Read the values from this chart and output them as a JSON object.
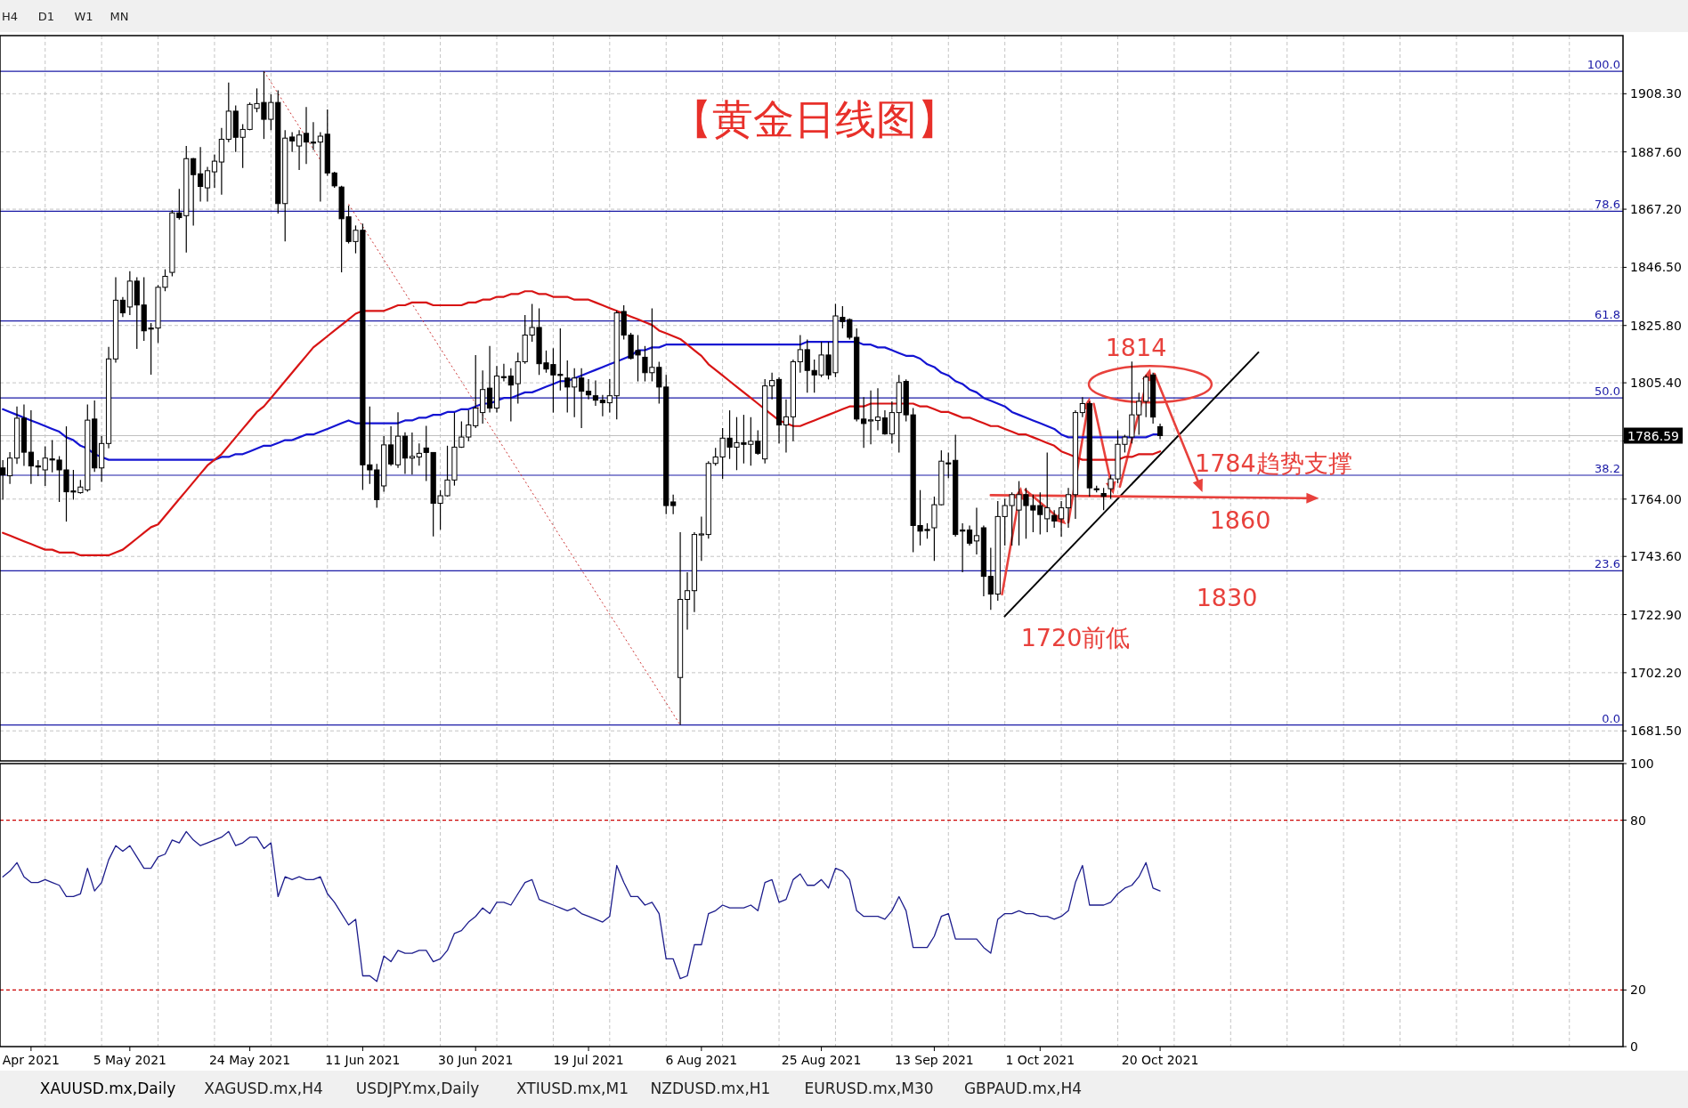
{
  "chart_data": [
    {
      "type": "candlestick",
      "title": "【黄金日线图】",
      "categories": [
        null,
        null,
        null,
        null,
        null,
        null,
        null,
        null,
        null,
        null,
        null,
        null,
        null,
        null,
        null,
        null,
        null,
        null,
        null,
        null,
        null,
        null,
        null,
        null,
        null,
        null,
        null,
        null,
        null,
        null,
        null,
        null,
        null,
        null,
        null,
        null,
        null,
        null,
        null,
        null,
        null,
        null,
        null,
        null,
        null,
        null,
        null,
        null,
        null,
        null,
        null,
        null,
        null,
        null,
        null,
        null,
        null,
        null,
        null,
        null,
        null,
        null,
        null,
        null,
        null,
        null,
        null,
        null,
        null,
        null,
        null,
        null,
        null,
        null,
        null,
        null,
        null,
        null,
        null,
        null,
        null,
        null,
        null,
        null,
        null,
        null,
        null,
        null,
        null,
        null,
        null,
        null,
        null,
        null,
        null,
        null,
        null,
        null,
        null,
        null,
        null,
        null,
        null,
        null,
        null,
        null,
        null,
        null,
        null,
        null,
        null,
        null,
        null,
        null,
        null,
        null,
        null,
        null,
        null,
        null,
        null,
        null,
        null,
        null,
        null,
        null,
        null,
        null,
        null,
        null,
        null,
        null,
        null,
        null,
        null,
        null,
        null,
        null,
        null,
        null,
        null,
        null,
        null,
        null,
        null,
        null,
        null,
        null,
        null,
        null,
        null,
        null,
        null,
        null,
        null,
        null,
        null,
        null,
        null,
        null,
        null,
        null,
        null,
        null,
        null
      ],
      "ohlc": [
        [
          1775.1,
          1777.9,
          1763.8,
          1772.6
        ],
        [
          1772.3,
          1780.7,
          1769.4,
          1778.6
        ],
        [
          1778.6,
          1797.0,
          1776.5,
          1792.8
        ],
        [
          1792.8,
          1797.7,
          1775.8,
          1780.7
        ],
        [
          1780.7,
          1795.6,
          1769.4,
          1775.8
        ],
        [
          1775.8,
          1777.9,
          1772.2,
          1775.6
        ],
        [
          1774.4,
          1782.8,
          1768.7,
          1778.6
        ],
        [
          1778.3,
          1785.0,
          1773.5,
          1778.1
        ],
        [
          1777.9,
          1779.3,
          1763.0,
          1774.4
        ],
        [
          1774.4,
          1789.9,
          1756.0,
          1766.6
        ],
        [
          1766.9,
          1774.4,
          1763.8,
          1766.7
        ],
        [
          1766.3,
          1770.8,
          1765.9,
          1768.3
        ],
        [
          1767.3,
          1797.7,
          1766.6,
          1792.1
        ],
        [
          1792.5,
          1799.1,
          1773.7,
          1775.1
        ],
        [
          1775.1,
          1786.4,
          1770.1,
          1783.8
        ],
        [
          1783.8,
          1818.2,
          1782.1,
          1813.9
        ],
        [
          1813.9,
          1843.0,
          1812.6,
          1834.8
        ],
        [
          1834.8,
          1835.9,
          1828.8,
          1830.3
        ],
        [
          1832.4,
          1845.1,
          1829.5,
          1841.6
        ],
        [
          1841.6,
          1843.0,
          1817.5,
          1833.1
        ],
        [
          1833.1,
          1843.0,
          1820.3,
          1823.9
        ],
        [
          1824.9,
          1826.7,
          1808.3,
          1824.7
        ],
        [
          1824.9,
          1840.2,
          1819.6,
          1839.4
        ],
        [
          1839.4,
          1845.8,
          1838.0,
          1843.3
        ],
        [
          1844.7,
          1866.8,
          1843.3,
          1865.9
        ],
        [
          1865.9,
          1874.4,
          1863.5,
          1864.2
        ],
        [
          1864.9,
          1889.7,
          1851.8,
          1885.2
        ],
        [
          1885.2,
          1885.4,
          1861.4,
          1879.5
        ],
        [
          1879.8,
          1889.3,
          1869.9,
          1875.3
        ],
        [
          1874.8,
          1882.3,
          1869.9,
          1880.9
        ],
        [
          1880.5,
          1886.6,
          1874.8,
          1884.3
        ],
        [
          1884.0,
          1896.1,
          1872.4,
          1892.1
        ],
        [
          1892.1,
          1912.3,
          1891.1,
          1902.1
        ],
        [
          1902.1,
          1904.1,
          1887.6,
          1892.8
        ],
        [
          1892.8,
          1897.5,
          1881.9,
          1895.6
        ],
        [
          1895.6,
          1905.2,
          1895.3,
          1904.5
        ],
        [
          1903.1,
          1910.2,
          1901.7,
          1904.8
        ],
        [
          1905.2,
          1916.3,
          1892.2,
          1899.2
        ],
        [
          1899.2,
          1908.1,
          1895.3,
          1905.2
        ],
        [
          1905.2,
          1909.5,
          1865.6,
          1869.2
        ],
        [
          1869.2,
          1895.3,
          1855.7,
          1892.5
        ],
        [
          1892.9,
          1894.6,
          1887.6,
          1891.5
        ],
        [
          1889.7,
          1895.3,
          1881.2,
          1893.6
        ],
        [
          1894.2,
          1903.6,
          1883.3,
          1891.1
        ],
        [
          1891.1,
          1898.2,
          1888.3,
          1891.0
        ],
        [
          1891.1,
          1894.6,
          1869.9,
          1893.2
        ],
        [
          1893.9,
          1902.7,
          1879.1,
          1880.1
        ],
        [
          1880.1,
          1880.5,
          1874.8,
          1875.5
        ],
        [
          1875.1,
          1875.5,
          1844.7,
          1863.8
        ],
        [
          1864.5,
          1868.5,
          1855.0,
          1855.7
        ],
        [
          1855.7,
          1861.4,
          1851.5,
          1859.7
        ],
        [
          1859.7,
          1862.1,
          1767.3,
          1776.2
        ],
        [
          1776.2,
          1797.0,
          1769.4,
          1774.4
        ],
        [
          1774.4,
          1776.5,
          1760.9,
          1763.8
        ],
        [
          1768.7,
          1786.4,
          1766.6,
          1783.3
        ],
        [
          1783.3,
          1789.9,
          1775.8,
          1776.5
        ],
        [
          1776.2,
          1794.9,
          1775.1,
          1786.4
        ],
        [
          1786.4,
          1787.8,
          1773.0,
          1778.6
        ],
        [
          1778.6,
          1787.7,
          1772.7,
          1779.2
        ],
        [
          1779.0,
          1783.8,
          1775.9,
          1780.3
        ],
        [
          1782.2,
          1790.1,
          1770.4,
          1780.6
        ],
        [
          1780.6,
          1780.6,
          1750.7,
          1762.5
        ],
        [
          1762.5,
          1767.2,
          1753.1,
          1765.2
        ],
        [
          1765.2,
          1783.0,
          1764.9,
          1770.8
        ],
        [
          1770.8,
          1794.8,
          1768.8,
          1782.5
        ],
        [
          1782.5,
          1791.7,
          1782.2,
          1786.1
        ],
        [
          1786.1,
          1795.6,
          1784.6,
          1790.4
        ],
        [
          1790.1,
          1815.3,
          1789.3,
          1796.4
        ],
        [
          1794.8,
          1809.8,
          1790.9,
          1803.0
        ],
        [
          1803.5,
          1818.5,
          1794.8,
          1796.4
        ],
        [
          1796.4,
          1811.4,
          1794.8,
          1807.8
        ],
        [
          1807.6,
          1812.2,
          1805.9,
          1807.4
        ],
        [
          1807.8,
          1810.6,
          1791.7,
          1804.6
        ],
        [
          1805.1,
          1816.1,
          1798.0,
          1812.9
        ],
        [
          1812.9,
          1829.5,
          1812.2,
          1822.4
        ],
        [
          1822.4,
          1833.5,
          1820.0,
          1825.1
        ],
        [
          1825.1,
          1831.9,
          1808.2,
          1812.2
        ],
        [
          1812.5,
          1816.9,
          1809.0,
          1810.3
        ],
        [
          1811.9,
          1817.7,
          1794.8,
          1808.2
        ],
        [
          1808.4,
          1824.8,
          1802.7,
          1808.2
        ],
        [
          1807.1,
          1813.4,
          1794.8,
          1803.9
        ],
        [
          1803.9,
          1810.6,
          1793.2,
          1807.1
        ],
        [
          1807.1,
          1810.6,
          1789.3,
          1802.4
        ],
        [
          1802.4,
          1806.7,
          1799.5,
          1801.1
        ],
        [
          1800.8,
          1806.2,
          1797.2,
          1799.2
        ],
        [
          1799.2,
          1801.1,
          1793.5,
          1798.3
        ],
        [
          1798.3,
          1806.7,
          1794.8,
          1800.8
        ],
        [
          1800.8,
          1831.1,
          1792.4,
          1830.3
        ],
        [
          1830.8,
          1833.0,
          1820.8,
          1822.4
        ],
        [
          1822.4,
          1823.2,
          1813.7,
          1814.1
        ],
        [
          1816.9,
          1822.4,
          1805.9,
          1815.3
        ],
        [
          1814.5,
          1818.5,
          1805.9,
          1809.0
        ],
        [
          1809.0,
          1831.9,
          1805.9,
          1810.9
        ],
        [
          1810.9,
          1812.9,
          1798.0,
          1803.9
        ],
        [
          1803.9,
          1808.2,
          1758.6,
          1761.7
        ],
        [
          1763.0,
          1765.6,
          1758.6,
          1761.7
        ],
        [
          1700.5,
          1752.2,
          1683.6,
          1728.3
        ],
        [
          1728.3,
          1738.0,
          1717.5,
          1731.4
        ],
        [
          1731.4,
          1752.2,
          1723.8,
          1751.4
        ],
        [
          1751.4,
          1757.8,
          1742.0,
          1751.6
        ],
        [
          1751.4,
          1777.5,
          1749.9,
          1776.7
        ],
        [
          1776.7,
          1782.2,
          1775.9,
          1779.0
        ],
        [
          1779.0,
          1789.3,
          1771.2,
          1785.7
        ],
        [
          1785.7,
          1795.6,
          1778.3,
          1782.5
        ],
        [
          1782.5,
          1793.2,
          1774.3,
          1784.1
        ],
        [
          1784.1,
          1794.0,
          1776.7,
          1783.5
        ],
        [
          1783.5,
          1793.2,
          1775.9,
          1784.6
        ],
        [
          1784.6,
          1788.5,
          1779.8,
          1780.3
        ],
        [
          1778.3,
          1806.7,
          1776.7,
          1804.3
        ],
        [
          1804.3,
          1809.0,
          1799.5,
          1806.2
        ],
        [
          1806.6,
          1807.4,
          1783.8,
          1790.4
        ],
        [
          1790.4,
          1799.5,
          1780.6,
          1793.3
        ],
        [
          1793.3,
          1813.7,
          1784.6,
          1812.9
        ],
        [
          1812.9,
          1822.4,
          1809.0,
          1817.2
        ],
        [
          1817.2,
          1820.8,
          1801.9,
          1809.8
        ],
        [
          1809.8,
          1813.7,
          1801.9,
          1808.2
        ],
        [
          1808.2,
          1820.0,
          1807.4,
          1815.3
        ],
        [
          1815.3,
          1820.0,
          1806.6,
          1808.2
        ],
        [
          1809.0,
          1833.5,
          1807.4,
          1829.2
        ],
        [
          1828.7,
          1832.7,
          1824.8,
          1827.2
        ],
        [
          1827.9,
          1828.3,
          1820.8,
          1821.6
        ],
        [
          1821.6,
          1824.8,
          1791.7,
          1792.5
        ],
        [
          1792.5,
          1800.3,
          1782.2,
          1790.9
        ],
        [
          1792.0,
          1802.7,
          1783.5,
          1792.2
        ],
        [
          1792.0,
          1803.5,
          1788.5,
          1793.2
        ],
        [
          1792.9,
          1795.6,
          1786.9,
          1787.2
        ],
        [
          1787.2,
          1798.8,
          1783.8,
          1794.8
        ],
        [
          1794.8,
          1808.2,
          1780.6,
          1805.5
        ],
        [
          1805.9,
          1806.6,
          1791.7,
          1794.0
        ],
        [
          1794.0,
          1796.4,
          1745.1,
          1754.6
        ],
        [
          1754.6,
          1767.2,
          1747.5,
          1752.6
        ],
        [
          1753.2,
          1755.4,
          1749.9,
          1753.0
        ],
        [
          1753.8,
          1764.9,
          1742.0,
          1762.0
        ],
        [
          1762.0,
          1781.4,
          1761.7,
          1777.5
        ],
        [
          1776.9,
          1780.6,
          1771.5,
          1776.7
        ],
        [
          1777.8,
          1786.9,
          1750.6,
          1751.4
        ],
        [
          1753.0,
          1755.4,
          1738.0,
          1752.6
        ],
        [
          1753.0,
          1754.6,
          1747.5,
          1748.3
        ],
        [
          1749.1,
          1760.9,
          1744.3,
          1751.0
        ],
        [
          1753.8,
          1754.6,
          1729.4,
          1736.5
        ],
        [
          1736.5,
          1746.7,
          1724.6,
          1730.2
        ],
        [
          1730.2,
          1763.3,
          1727.8,
          1757.8
        ],
        [
          1757.8,
          1764.1,
          1747.5,
          1761.7
        ],
        [
          1761.7,
          1766.4,
          1747.5,
          1765.6
        ],
        [
          1760.1,
          1770.4,
          1747.5,
          1765.6
        ],
        [
          1765.6,
          1768.0,
          1749.9,
          1761.7
        ],
        [
          1761.7,
          1765.6,
          1752.2,
          1760.1
        ],
        [
          1761.7,
          1766.4,
          1751.4,
          1758.5
        ],
        [
          1757.0,
          1780.6,
          1752.2,
          1760.9
        ],
        [
          1758.2,
          1760.1,
          1753.8,
          1756.2
        ],
        [
          1757.0,
          1763.3,
          1750.6,
          1760.9
        ],
        [
          1760.9,
          1768.0,
          1753.8,
          1765.6
        ],
        [
          1765.6,
          1795.6,
          1757.0,
          1794.8
        ],
        [
          1794.8,
          1800.3,
          1793.2,
          1798.0
        ],
        [
          1798.0,
          1798.8,
          1764.9,
          1768.0
        ],
        [
          1767.7,
          1768.8,
          1766.4,
          1767.6
        ],
        [
          1766.0,
          1768.0,
          1760.1,
          1765.0
        ],
        [
          1767.7,
          1772.7,
          1764.1,
          1771.2
        ],
        [
          1771.2,
          1788.5,
          1769.6,
          1783.5
        ],
        [
          1783.5,
          1786.9,
          1780.6,
          1786.1
        ],
        [
          1786.1,
          1813.0,
          1783.8,
          1794.0
        ],
        [
          1794.0,
          1801.9,
          1786.9,
          1798.8
        ],
        [
          1798.8,
          1808.2,
          1793.2,
          1807.4
        ],
        [
          1808.2,
          1809.0,
          1790.9,
          1793.2
        ],
        [
          1789.8,
          1790.9,
          1785.3,
          1786.6
        ]
      ],
      "series": [
        {
          "type": "line",
          "color": "#1414d2",
          "values": [
            1796,
            1795,
            1794,
            1793,
            1792,
            1791,
            1790,
            1789,
            1788,
            1786,
            1785,
            1783,
            1782,
            1780,
            1779,
            1778,
            1778,
            1778,
            1778,
            1778,
            1778,
            1778,
            1778,
            1778,
            1778,
            1778,
            1778,
            1778,
            1778,
            1778,
            1778,
            1779,
            1779,
            1780,
            1780,
            1781,
            1782,
            1783,
            1783,
            1784,
            1785,
            1785,
            1786,
            1787,
            1787,
            1788,
            1789,
            1790,
            1791,
            1792,
            1791,
            1791,
            1791,
            1791,
            1791,
            1791,
            1791,
            1792,
            1792,
            1793,
            1793,
            1794,
            1794,
            1795,
            1795,
            1796,
            1796,
            1797,
            1798,
            1798,
            1799,
            1800,
            1800,
            1801,
            1802,
            1802,
            1803,
            1804,
            1805,
            1806,
            1806,
            1807,
            1808,
            1809,
            1810,
            1811,
            1812,
            1813,
            1814,
            1815,
            1817,
            1817,
            1818,
            1818,
            1819,
            1819,
            1819,
            1819,
            1819,
            1819,
            1819,
            1819,
            1819,
            1819,
            1819,
            1819,
            1819,
            1819,
            1819,
            1819,
            1819,
            1819,
            1819,
            1819,
            1820,
            1820,
            1820,
            1820,
            1820,
            1820,
            1820,
            1820,
            1819,
            1819,
            1818,
            1818,
            1817,
            1816,
            1815,
            1815,
            1814,
            1812,
            1811,
            1809,
            1808,
            1806,
            1805,
            1803,
            1802,
            1800,
            1799,
            1798,
            1797,
            1795,
            1794,
            1793,
            1792,
            1791,
            1790,
            1789,
            1787,
            1786,
            1786,
            1786,
            1786,
            1786,
            1786,
            1786,
            1786,
            1786,
            1786,
            1786,
            1786,
            1787,
            1787
          ]
        },
        {
          "type": "line",
          "color": "#d81414",
          "values": [
            1752,
            1751,
            1750,
            1749,
            1748,
            1747,
            1746,
            1746,
            1745,
            1745,
            1745,
            1744,
            1744,
            1744,
            1744,
            1744,
            1745,
            1746,
            1748,
            1750,
            1752,
            1754,
            1755,
            1758,
            1761,
            1764,
            1767,
            1770,
            1773,
            1776,
            1778,
            1780,
            1783,
            1786,
            1789,
            1792,
            1795,
            1797,
            1800,
            1803,
            1806,
            1809,
            1812,
            1815,
            1818,
            1820,
            1822,
            1824,
            1826,
            1828,
            1830,
            1831,
            1831,
            1831,
            1831,
            1832,
            1833,
            1833,
            1834,
            1834,
            1834,
            1833,
            1833,
            1833,
            1833,
            1833,
            1834,
            1834,
            1835,
            1835,
            1836,
            1836,
            1837,
            1837,
            1838,
            1838,
            1837,
            1837,
            1836,
            1836,
            1836,
            1835,
            1835,
            1835,
            1834,
            1833,
            1832,
            1831,
            1830,
            1829,
            1828,
            1827,
            1826,
            1824,
            1823,
            1822,
            1821,
            1819,
            1817,
            1815,
            1812,
            1810,
            1808,
            1806,
            1804,
            1802,
            1800,
            1798,
            1796,
            1794,
            1792,
            1791,
            1790,
            1790,
            1791,
            1792,
            1793,
            1794,
            1795,
            1796,
            1797,
            1797,
            1797,
            1798,
            1798,
            1798,
            1798,
            1798,
            1798,
            1798,
            1797,
            1797,
            1796,
            1795,
            1795,
            1794,
            1793,
            1793,
            1792,
            1791,
            1790,
            1790,
            1789,
            1788,
            1787,
            1787,
            1786,
            1785,
            1784,
            1783,
            1781,
            1780,
            1779,
            1778,
            1778,
            1778,
            1778,
            1778,
            1778,
            1779,
            1779,
            1780,
            1780,
            1780,
            1781
          ]
        },
        {
          "type": "line",
          "color": "#cc3333",
          "line_style": "dotted",
          "values": [
            null,
            null,
            null,
            null,
            null,
            null,
            null,
            null,
            null,
            null,
            null,
            null,
            null,
            null,
            null,
            null,
            null,
            null,
            null,
            null,
            null,
            null,
            null,
            null,
            null,
            null,
            null,
            null,
            null,
            null,
            null,
            null,
            null,
            null,
            null,
            null,
            null,
            1916.3,
            1912.4,
            1908.4,
            1904.5,
            1900.5,
            1896.6,
            1892.6,
            1888.7,
            1884.7,
            null,
            null,
            null,
            1869.0,
            1865.0,
            1861.1,
            1857.1,
            1853.2,
            1849.2,
            1845.3,
            1841.4,
            1837.4,
            1833.5,
            1829.5,
            1825.6,
            1821.6,
            1817.7,
            1813.7,
            1809.8,
            1805.9,
            1801.9,
            1798.0,
            1794.0,
            1790.1,
            1786.1,
            1782.2,
            1778.2,
            1774.3,
            1770.4,
            1766.4,
            1762.5,
            1758.5,
            1754.6,
            1750.6,
            1746.7,
            1742.7,
            1738.8,
            1734.9,
            1730.9,
            1727.0,
            1723.0,
            1719.1,
            1715.1,
            1711.2,
            1707.2,
            1703.3,
            1699.4,
            1695.4,
            1691.5,
            1687.5,
            1683.6,
            null,
            null,
            null,
            null,
            null,
            null,
            null,
            null,
            null,
            null,
            null,
            null,
            null,
            null,
            null,
            null,
            null,
            null,
            null,
            null,
            null,
            null,
            null,
            null,
            null,
            null,
            null,
            null,
            null,
            null,
            null,
            null,
            null,
            null,
            null,
            null,
            null,
            null,
            null,
            null,
            null,
            null,
            null,
            null,
            null,
            null,
            null,
            null,
            null,
            null,
            null,
            null,
            null,
            null,
            null,
            null,
            null,
            null,
            null,
            null,
            null,
            null,
            null,
            null,
            null,
            null,
            null,
            null
          ]
        }
      ],
      "ylim": [
        1670.8,
        1929.0
      ],
      "yticks": [
        {
          "value": 1681.5,
          "label": "1681.50"
        },
        {
          "value": 1702.2,
          "label": "1702.20"
        },
        {
          "value": 1722.9,
          "label": "1722.90"
        },
        {
          "value": 1743.6,
          "label": "1743.60"
        },
        {
          "value": 1764.0,
          "label": "1764.00"
        },
        {
          "value": 1784.7,
          "label": null
        },
        {
          "value": 1805.4,
          "label": "1805.40"
        },
        {
          "value": 1825.8,
          "label": "1825.80"
        },
        {
          "value": 1846.5,
          "label": "1846.50"
        },
        {
          "value": 1867.2,
          "label": "1867.20"
        },
        {
          "value": 1887.6,
          "label": "1887.60"
        },
        {
          "value": 1908.3,
          "label": "1908.30"
        }
      ],
      "grid": true,
      "tick_labels": "y",
      "ref_lines": [
        {
          "axis": "y",
          "value": 1786.59,
          "label": "1786.59",
          "color": "#c0c0c0"
        },
        {
          "axis": "y",
          "value": 1916.3,
          "color": "#1a1aa6"
        },
        {
          "axis": "y",
          "value": 1866.5,
          "color": "#1a1aa6"
        },
        {
          "axis": "y",
          "value": 1827.4,
          "color": "#1a1aa6"
        },
        {
          "axis": "y",
          "value": 1800.0,
          "color": "#1a1aa6"
        },
        {
          "axis": "y",
          "value": 1772.5,
          "color": "#1a1aa6"
        },
        {
          "axis": "y",
          "value": 1738.5,
          "color": "#1a1aa6"
        },
        {
          "axis": "y",
          "value": 1683.6,
          "color": "#1a1aa6"
        }
      ],
      "annotations": [
        "1814",
        "1784趋势支撑",
        "1860",
        "1830",
        "1720前低",
        "H4",
        "D1",
        "W1",
        "MN",
        "XAUUSD.mx,Daily",
        "XAGUSD.mx,H4",
        "USDJPY.mx,Daily",
        "XTIUSD.mx,M1",
        "NZDUSD.mx,H1",
        "EURUSD.mx,M30",
        "GBPAUD.mx,H4",
        {
          "text": "100.0",
          "y": 1916.3
        },
        {
          "text": "78.6",
          "y": 1866.5
        },
        {
          "text": "61.8",
          "y": 1827.4
        },
        {
          "text": "50.0",
          "y": 1800.0
        },
        {
          "text": "38.2",
          "y": 1772.5
        },
        {
          "text": "23.6",
          "y": 1738.5
        },
        {
          "text": "0.0",
          "y": 1683.6
        }
      ]
    },
    {
      "type": "line",
      "categories": [
        null,
        null,
        null,
        null,
        "Apr 2021",
        null,
        null,
        null,
        null,
        null,
        null,
        null,
        null,
        null,
        null,
        null,
        null,
        null,
        "5 May 2021",
        null,
        null,
        null,
        null,
        null,
        null,
        null,
        null,
        null,
        null,
        null,
        null,
        null,
        null,
        null,
        null,
        "24 May 2021",
        null,
        null,
        null,
        null,
        null,
        null,
        null,
        null,
        null,
        null,
        null,
        null,
        null,
        null,
        null,
        "11 Jun 2021",
        null,
        null,
        null,
        null,
        null,
        null,
        null,
        null,
        null,
        null,
        null,
        null,
        null,
        null,
        null,
        "30 Jun 2021",
        null,
        null,
        null,
        null,
        null,
        null,
        null,
        null,
        null,
        null,
        null,
        null,
        null,
        null,
        null,
        "19 Jul 2021",
        null,
        null,
        null,
        null,
        null,
        null,
        null,
        null,
        null,
        null,
        null,
        null,
        null,
        null,
        null,
        "6 Aug 2021",
        null,
        null,
        null,
        null,
        null,
        null,
        null,
        null,
        null,
        null,
        null,
        null,
        null,
        null,
        null,
        null,
        "25 Aug 2021",
        null,
        null,
        null,
        null,
        null,
        null,
        null,
        null,
        null,
        null,
        null,
        null,
        null,
        null,
        null,
        "13 Sep 2021",
        null,
        null,
        null,
        null,
        null,
        null,
        null,
        null,
        null,
        null,
        null,
        null,
        null,
        null,
        "1 Oct 2021",
        null,
        null,
        null,
        null,
        null,
        null,
        null,
        null,
        null,
        null,
        null,
        null,
        null,
        null,
        null,
        null,
        "20 Oct 2021"
      ],
      "values": [
        60,
        62,
        65,
        60,
        58,
        58,
        59,
        58,
        57,
        53,
        53,
        54,
        63,
        55,
        58,
        66,
        71,
        69,
        71,
        67,
        63,
        63,
        67,
        68,
        73,
        72,
        76,
        73,
        71,
        72,
        73,
        74,
        76,
        71,
        72,
        74,
        74,
        70,
        72,
        53,
        60,
        59,
        60,
        59,
        59,
        60,
        54,
        51,
        47,
        43,
        45,
        25,
        25,
        23,
        32,
        30,
        34,
        33,
        33,
        34,
        34,
        30,
        31,
        34,
        40,
        41,
        44,
        46,
        49,
        47,
        51,
        51,
        50,
        54,
        58,
        59,
        52,
        51,
        50,
        49,
        48,
        49,
        47,
        46,
        45,
        44,
        46,
        64,
        58,
        53,
        53,
        50,
        51,
        47,
        31,
        31,
        24,
        25,
        36,
        36,
        47,
        48,
        50,
        49,
        49,
        49,
        50,
        48,
        58,
        59,
        51,
        52,
        59,
        61,
        57,
        57,
        59,
        56,
        63,
        62,
        59,
        48,
        46,
        46,
        46,
        45,
        48,
        53,
        48,
        35,
        35,
        35,
        39,
        46,
        47,
        38,
        38,
        38,
        38,
        35,
        33,
        45,
        47,
        47,
        48,
        47,
        47,
        46,
        46,
        45,
        46,
        48,
        58,
        64,
        50,
        50,
        50,
        51,
        54,
        56,
        57,
        60,
        65,
        56,
        55
      ],
      "color": "#1c1c8c",
      "ylim": [
        0,
        100
      ],
      "yticks": [
        0,
        20,
        80,
        100
      ],
      "grid": "x",
      "ref_lines": [
        {
          "axis": "y",
          "value": 80,
          "color": "#cc0000",
          "line_style": "dashed"
        },
        {
          "axis": "y",
          "value": 20,
          "color": "#cc0000",
          "line_style": "dashed"
        }
      ]
    }
  ]
}
